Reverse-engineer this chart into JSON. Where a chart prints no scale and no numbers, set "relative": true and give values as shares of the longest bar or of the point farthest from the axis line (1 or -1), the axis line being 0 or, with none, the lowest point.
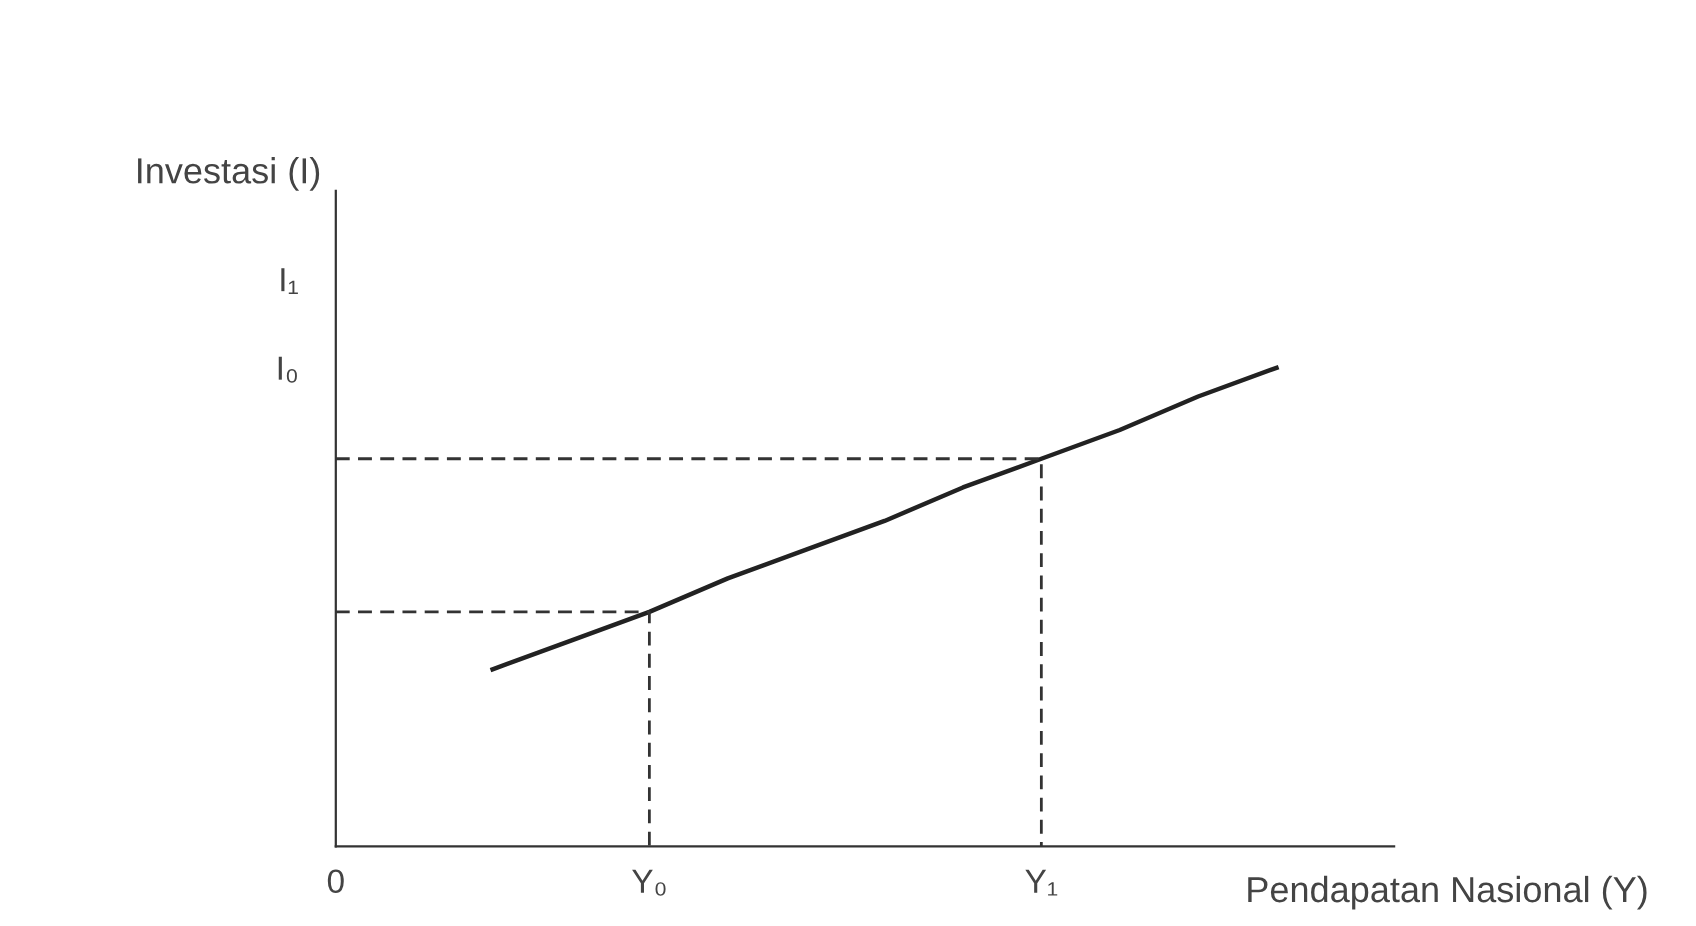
{
  "chart_data": {
    "type": "line",
    "xlabel": "Pendapatan Nasional (Y)",
    "ylabel": "Investasi (I)",
    "relative": true,
    "categories": [
      "0",
      null,
      null,
      null,
      "Y₀",
      null,
      null,
      null,
      null,
      "Y₁",
      null,
      null,
      null,
      null
    ],
    "grid": false,
    "marker": "none",
    "annotations": [
      "I₁",
      "I₀"
    ],
    "series": [
      {
        "values": [
          null,
          null,
          0.37,
          0.43,
          0.49,
          0.56,
          0.62,
          0.68,
          0.75,
          0.81,
          0.87,
          0.94,
          1.0,
          null
        ],
        "color": "#222222",
        "line_style": "solid"
      },
      {
        "x": [
          "0",
          "Y₀",
          "Y₀"
        ],
        "values": [
          0.49,
          0.49,
          0
        ],
        "color": "#333333",
        "line_style": "dashed"
      },
      {
        "x": [
          "0",
          "Y₁",
          "Y₁"
        ],
        "values": [
          0.81,
          0.81,
          0
        ],
        "color": "#333333",
        "line_style": "dashed"
      }
    ]
  }
}
